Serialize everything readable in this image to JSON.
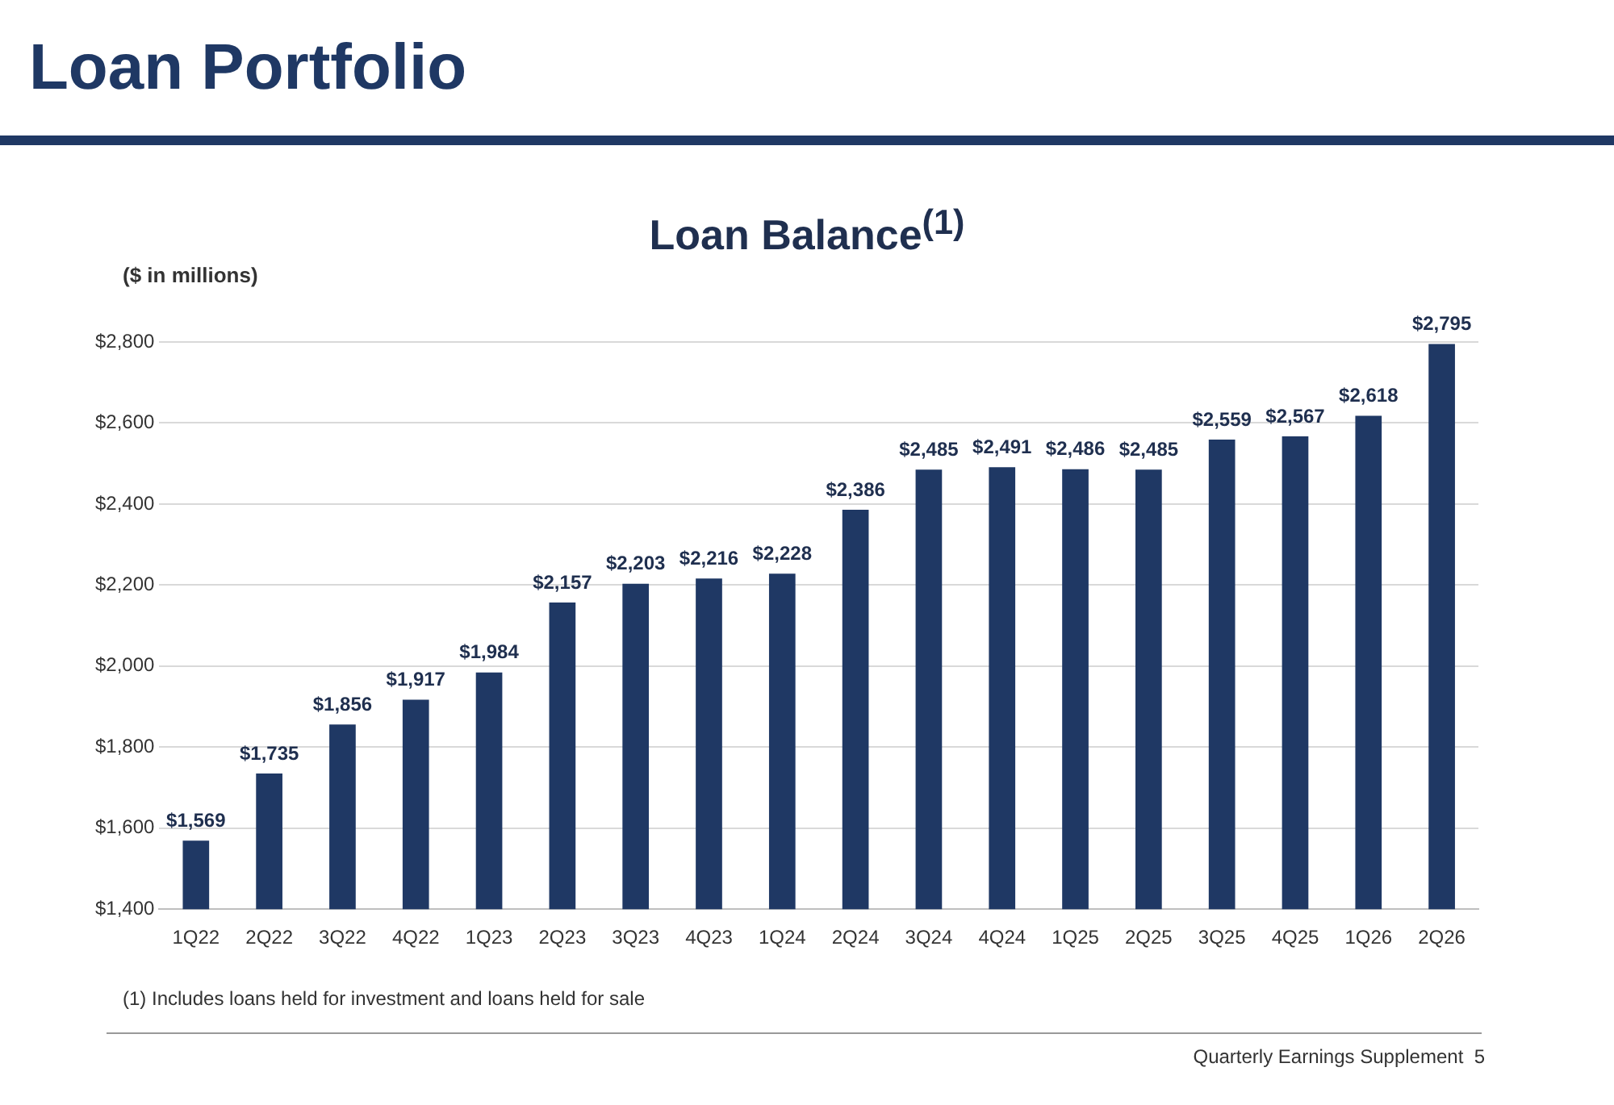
{
  "chart_data": {
    "type": "bar",
    "title": "Loan Portfolio",
    "subtitle": "Loan Balance$^{(1)}$",
    "ylabel": "($ in millions)",
    "categories": [
      "1Q22",
      "2Q22",
      "3Q22",
      "4Q22",
      "1Q23",
      "2Q23",
      "3Q23",
      "4Q23",
      "1Q24",
      "2Q24",
      "3Q24",
      "4Q24",
      "1Q25",
      "2Q25",
      "3Q25",
      "4Q25",
      "1Q26",
      "2Q26"
    ],
    "values": [
      1569,
      1735,
      1856,
      1917,
      1984,
      2157,
      2203,
      2216,
      2228,
      2386,
      2485,
      2491,
      2486,
      2485,
      2559,
      2567,
      2618,
      2795
    ],
    "value_labels": [
      "$1,569",
      "$1,735",
      "$1,856",
      "$1,917",
      "$1,984",
      "$2,157",
      "$2,203",
      "$2,216",
      "$2,228",
      "$2,386",
      "$2,485",
      "$2,491",
      "$2,486",
      "$2,485",
      "$2,559",
      "$2,567",
      "$2,618",
      "$2,795"
    ],
    "color": "#1f3864",
    "ylim": [
      1400,
      2800
    ],
    "yticks": [
      {
        "value": 1400,
        "label": "$1,400"
      },
      {
        "value": 1600,
        "label": "$1,600"
      },
      {
        "value": 1800,
        "label": "$1,800"
      },
      {
        "value": 2000,
        "label": "$2,000"
      },
      {
        "value": 2200,
        "label": "$2,200"
      },
      {
        "value": 2400,
        "label": "$2,400"
      },
      {
        "value": 2600,
        "label": "$2,600"
      },
      {
        "value": 2800,
        "label": "$2,800"
      }
    ],
    "grid": "y",
    "annotations": [
      "(1) Includes loans held for investment and loans held for sale",
      "Quarterly Earnings Supplement  5"
    ]
  }
}
